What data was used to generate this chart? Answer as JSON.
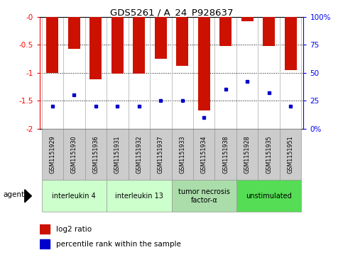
{
  "title": "GDS5261 / A_24_P928637",
  "samples": [
    "GSM1151929",
    "GSM1151930",
    "GSM1151936",
    "GSM1151931",
    "GSM1151932",
    "GSM1151937",
    "GSM1151933",
    "GSM1151934",
    "GSM1151938",
    "GSM1151928",
    "GSM1151935",
    "GSM1151951"
  ],
  "log2_ratio": [
    -1.0,
    -0.58,
    -1.12,
    -1.02,
    -1.02,
    -0.75,
    -0.88,
    -1.68,
    -0.52,
    -0.08,
    -0.52,
    -0.95
  ],
  "percentile": [
    20,
    30,
    20,
    20,
    20,
    25,
    25,
    10,
    35,
    42,
    32,
    20
  ],
  "bar_color": "#cc1100",
  "pct_color": "#0000cc",
  "ylim_left": [
    -2.0,
    0.0
  ],
  "ylim_right": [
    0,
    100
  ],
  "yticks_left": [
    0.0,
    -0.5,
    -1.0,
    -1.5,
    -2.0
  ],
  "ytick_labels_left": [
    "-0",
    "-0.5",
    "-1",
    "-1.5",
    "-2"
  ],
  "yticks_right": [
    0,
    25,
    50,
    75,
    100
  ],
  "ytick_labels_right": [
    "0%",
    "25",
    "50",
    "75",
    "100%"
  ],
  "groups": [
    {
      "label": "interleukin 4",
      "start": 0,
      "end": 3,
      "color": "#ccffcc"
    },
    {
      "label": "interleukin 13",
      "start": 3,
      "end": 6,
      "color": "#ccffcc"
    },
    {
      "label": "tumor necrosis\nfactor-α",
      "start": 6,
      "end": 9,
      "color": "#aaddaa"
    },
    {
      "label": "unstimulated",
      "start": 9,
      "end": 12,
      "color": "#55dd55"
    }
  ],
  "legend_bar_label": "log2 ratio",
  "legend_pct_label": "percentile rank within the sample",
  "agent_label": "agent",
  "sample_box_color": "#cccccc",
  "plot_bg": "#ffffff",
  "bar_width": 0.55
}
